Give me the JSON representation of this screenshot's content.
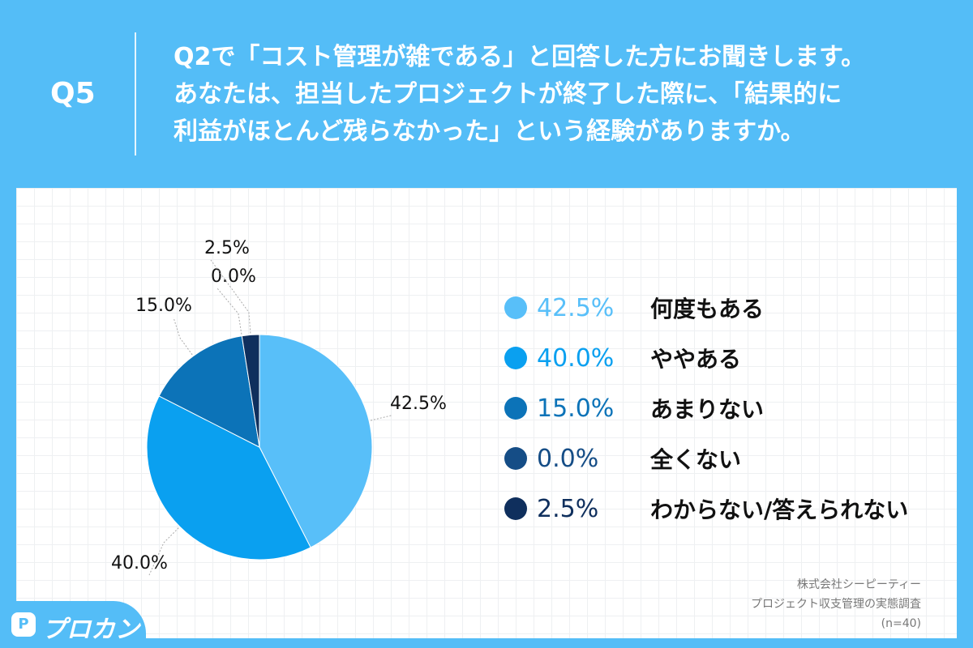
{
  "header": {
    "q_label": "Q5",
    "question_lines": [
      "Q2で「コスト管理が雑である」と回答した方にお聞きします。",
      "あなたは、担当したプロジェクトが終了した際に、「結果的に",
      "利益がほとんど残らなかった」という経験がありますか。"
    ]
  },
  "chart_data": {
    "type": "pie",
    "categories": [
      "何度もある",
      "ややある",
      "あまりない",
      "全くない",
      "わからない/答えられない"
    ],
    "values": [
      42.5,
      40.0,
      15.0,
      0.0,
      2.5
    ],
    "data_labels": [
      "42.5%",
      "40.0%",
      "15.0%",
      "0.0%",
      "2.5%"
    ],
    "colors": [
      "#58bff9",
      "#0aa0f0",
      "#0c73b8",
      "#154d86",
      "#0f2f5d"
    ],
    "legend_position": "right"
  },
  "source": {
    "lines": [
      "株式会社シーピーティー",
      "プロジェクト収支管理の実態調査",
      "(n=40)"
    ]
  },
  "logo": {
    "badge": "P",
    "text": "プロカン"
  }
}
